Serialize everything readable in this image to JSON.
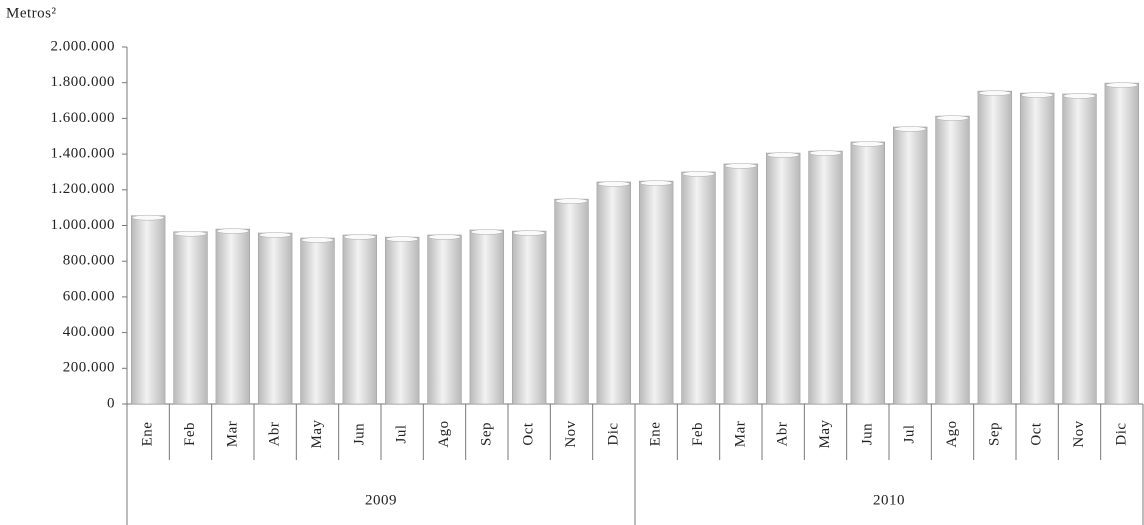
{
  "chart_data": {
    "type": "bar",
    "y_label": "Metros²",
    "categories": [
      "Ene",
      "Feb",
      "Mar",
      "Abr",
      "May",
      "Jun",
      "Jul",
      "Ago",
      "Sep",
      "Oct",
      "Nov",
      "Dic",
      "Ene",
      "Feb",
      "Mar",
      "Abr",
      "May",
      "Jun",
      "Jul",
      "Ago",
      "Sep",
      "Oct",
      "Nov",
      "Dic"
    ],
    "groups": [
      "2009",
      "2010"
    ],
    "values": [
      1055000,
      965000,
      980000,
      958000,
      930000,
      947000,
      935000,
      947000,
      975000,
      969000,
      1148000,
      1244000,
      1249000,
      1300000,
      1345000,
      1406000,
      1417000,
      1468000,
      1552000,
      1613000,
      1753000,
      1742000,
      1737000,
      1798000
    ],
    "color": "#b8b8b8",
    "ylim": [
      0,
      2000000
    ],
    "yticks": [
      0,
      {
        "value": 200000,
        "label": "200.000"
      },
      {
        "value": 400000,
        "label": "400.000"
      },
      {
        "value": 600000,
        "label": "600.000"
      },
      {
        "value": 800000,
        "label": "800.000"
      },
      {
        "value": 1000000,
        "label": "1.000.000"
      },
      {
        "value": 1200000,
        "label": "1.200.000"
      },
      {
        "value": 1400000,
        "label": "1.400.000"
      },
      {
        "value": 1600000,
        "label": "1.600.000"
      },
      {
        "value": 1800000,
        "label": "1.800.000"
      },
      {
        "value": 2000000,
        "label": "2.000.000"
      }
    ],
    "grid": false
  }
}
